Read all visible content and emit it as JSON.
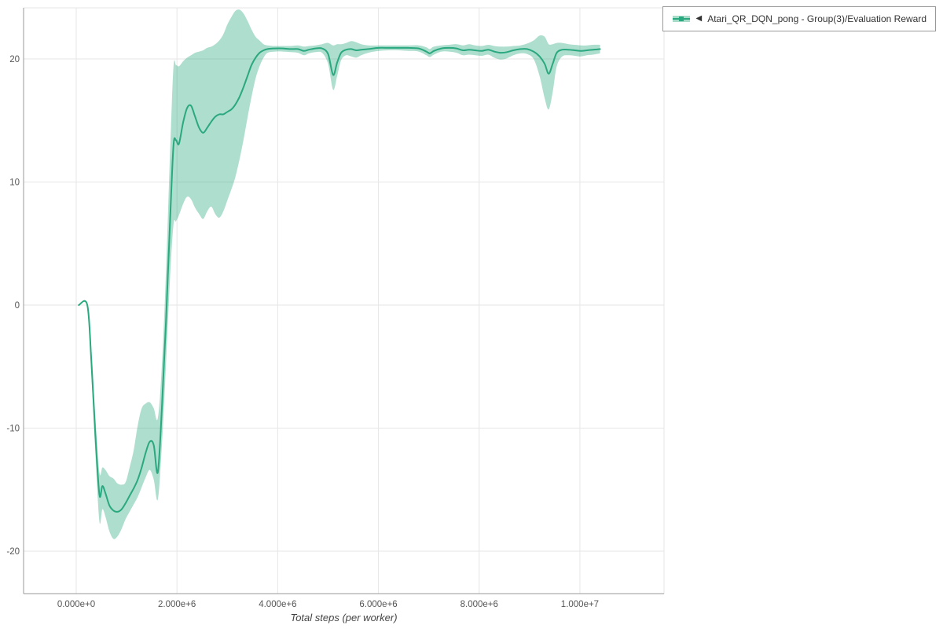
{
  "page": {
    "background": "#ffffff"
  },
  "legend": {
    "items": [
      {
        "collapse_icon": "◀",
        "label": "Atari_QR_DQN_pong - Group(3)/Evaluation Reward",
        "marker_color": "#2aa87f",
        "band_color": "#a9dcc8"
      }
    ]
  },
  "style": {
    "grid_color": "#e6e6e6",
    "axis_color": "#999999",
    "tick_label_color": "#555555",
    "axis_title_color": "#444444",
    "legend_border_color": "#999999",
    "legend_text_color": "#333333"
  },
  "chart_data": {
    "type": "line",
    "title": "",
    "xlabel": "Total steps (per worker)",
    "ylabel": "",
    "xlim": [
      -1045000,
      11670000
    ],
    "ylim": [
      -23.45,
      24.15
    ],
    "grid": true,
    "legend_position": "top-right",
    "x_ticks": [
      {
        "value": 0,
        "label": "0.000e+0"
      },
      {
        "value": 2000000,
        "label": "2.000e+6"
      },
      {
        "value": 4000000,
        "label": "4.000e+6"
      },
      {
        "value": 6000000,
        "label": "6.000e+6"
      },
      {
        "value": 8000000,
        "label": "8.000e+6"
      },
      {
        "value": 10000000,
        "label": "1.000e+7"
      }
    ],
    "y_ticks": [
      {
        "value": -20,
        "label": "-20"
      },
      {
        "value": -10,
        "label": "-10"
      },
      {
        "value": 0,
        "label": "0"
      },
      {
        "value": 10,
        "label": "10"
      },
      {
        "value": 20,
        "label": "20"
      }
    ],
    "series": [
      {
        "name": "Atari_QR_DQN_pong - Group(3)/Evaluation Reward",
        "line_color": "#2aa87f",
        "band_opacity": 0.38,
        "points_format": [
          "x_steps",
          "lower",
          "mean",
          "upper"
        ],
        "points": [
          [
            50000,
            0,
            0,
            0
          ],
          [
            220000,
            0,
            0,
            0
          ],
          [
            300000,
            -5.5,
            -4.5,
            -3.5
          ],
          [
            380000,
            -12,
            -10.5,
            -9
          ],
          [
            460000,
            -17.6,
            -15.4,
            -13.6
          ],
          [
            520000,
            -16.6,
            -14.7,
            -13.2
          ],
          [
            580000,
            -17.2,
            -15.3,
            -13.4
          ],
          [
            660000,
            -18.4,
            -16.3,
            -13.9
          ],
          [
            740000,
            -19,
            -16.7,
            -14.1
          ],
          [
            820000,
            -18.8,
            -16.8,
            -14.5
          ],
          [
            900000,
            -18.2,
            -16.6,
            -14.6
          ],
          [
            980000,
            -17.4,
            -16.1,
            -14.4
          ],
          [
            1060000,
            -16.8,
            -15.5,
            -13.2
          ],
          [
            1140000,
            -16.2,
            -14.9,
            -11.8
          ],
          [
            1220000,
            -15.6,
            -14.2,
            -9.8
          ],
          [
            1300000,
            -14.8,
            -13.2,
            -8.4
          ],
          [
            1380000,
            -14,
            -12,
            -8
          ],
          [
            1460000,
            -13.4,
            -11.1,
            -7.9
          ],
          [
            1540000,
            -14.2,
            -11.4,
            -8.4
          ],
          [
            1620000,
            -15.8,
            -13.6,
            -9.2
          ],
          [
            1700000,
            -11.5,
            -8.5,
            -5
          ],
          [
            1780000,
            -5,
            -1.5,
            2.5
          ],
          [
            1860000,
            2,
            6.5,
            12
          ],
          [
            1930000,
            6.5,
            12.9,
            19.3
          ],
          [
            1980000,
            6.8,
            13.4,
            19.5
          ],
          [
            2040000,
            7.3,
            13.1,
            19.4
          ],
          [
            2120000,
            8.2,
            14.8,
            19.8
          ],
          [
            2200000,
            8.8,
            16,
            20.1
          ],
          [
            2280000,
            8.6,
            16.2,
            20.3
          ],
          [
            2360000,
            7.9,
            15.3,
            20.5
          ],
          [
            2440000,
            7.4,
            14.4,
            20.6
          ],
          [
            2520000,
            7,
            14,
            20.7
          ],
          [
            2600000,
            7.6,
            14.4,
            20.9
          ],
          [
            2680000,
            8,
            14.9,
            21
          ],
          [
            2760000,
            7.4,
            15.3,
            21.2
          ],
          [
            2840000,
            7.1,
            15.5,
            21.5
          ],
          [
            2920000,
            7.6,
            15.5,
            22
          ],
          [
            3000000,
            8.5,
            15.7,
            22.8
          ],
          [
            3080000,
            9.4,
            15.9,
            23.4
          ],
          [
            3160000,
            10.4,
            16.3,
            23.9
          ],
          [
            3240000,
            11.8,
            16.9,
            24
          ],
          [
            3320000,
            13.4,
            17.7,
            23.7
          ],
          [
            3400000,
            15.2,
            18.6,
            23.1
          ],
          [
            3480000,
            16.9,
            19.5,
            22.4
          ],
          [
            3560000,
            18.4,
            20.1,
            21.8
          ],
          [
            3640000,
            19.4,
            20.5,
            21.5
          ],
          [
            3720000,
            20.1,
            20.7,
            21.2
          ],
          [
            3800000,
            20.5,
            20.8,
            21.1
          ],
          [
            3950000,
            20.6,
            20.85,
            21.05
          ],
          [
            4100000,
            20.6,
            20.85,
            21.05
          ],
          [
            4250000,
            20.55,
            20.8,
            21.05
          ],
          [
            4400000,
            20.5,
            20.8,
            21.1
          ],
          [
            4520000,
            20.3,
            20.65,
            21
          ],
          [
            4620000,
            20.45,
            20.75,
            21.05
          ],
          [
            4750000,
            20.55,
            20.85,
            21.1
          ],
          [
            4880000,
            20.5,
            20.85,
            21.2
          ],
          [
            5000000,
            19.6,
            20.4,
            21.3
          ],
          [
            5100000,
            17.5,
            18.7,
            21.1
          ],
          [
            5180000,
            18.6,
            19.7,
            21.2
          ],
          [
            5260000,
            19.9,
            20.5,
            21.2
          ],
          [
            5360000,
            20.3,
            20.75,
            21.3
          ],
          [
            5460000,
            20.2,
            20.8,
            21.45
          ],
          [
            5560000,
            20.1,
            20.7,
            21.35
          ],
          [
            5660000,
            20.3,
            20.75,
            21.2
          ],
          [
            5800000,
            20.5,
            20.8,
            21.1
          ],
          [
            6000000,
            20.65,
            20.9,
            21.1
          ],
          [
            6200000,
            20.7,
            20.9,
            21.1
          ],
          [
            6400000,
            20.7,
            20.9,
            21.1
          ],
          [
            6600000,
            20.65,
            20.9,
            21.1
          ],
          [
            6800000,
            20.6,
            20.85,
            21.1
          ],
          [
            6950000,
            20.3,
            20.6,
            20.95
          ],
          [
            7020000,
            20.15,
            20.45,
            20.8
          ],
          [
            7100000,
            20.35,
            20.65,
            21
          ],
          [
            7250000,
            20.6,
            20.85,
            21.1
          ],
          [
            7400000,
            20.6,
            20.9,
            21.15
          ],
          [
            7550000,
            20.5,
            20.85,
            21.2
          ],
          [
            7680000,
            20.3,
            20.7,
            21.1
          ],
          [
            7800000,
            20.35,
            20.75,
            21.2
          ],
          [
            7920000,
            20.3,
            20.7,
            21.1
          ],
          [
            8050000,
            20.25,
            20.65,
            21.05
          ],
          [
            8180000,
            20.35,
            20.75,
            21.15
          ],
          [
            8300000,
            20.1,
            20.6,
            21.05
          ],
          [
            8420000,
            19.95,
            20.5,
            21
          ],
          [
            8550000,
            20.05,
            20.55,
            21
          ],
          [
            8680000,
            20.3,
            20.7,
            21.05
          ],
          [
            8820000,
            20.45,
            20.8,
            21.1
          ],
          [
            8950000,
            20.4,
            20.8,
            21.25
          ],
          [
            9080000,
            20,
            20.6,
            21.5
          ],
          [
            9200000,
            18.6,
            20.2,
            21.9
          ],
          [
            9300000,
            16.8,
            19.6,
            21.8
          ],
          [
            9380000,
            15.9,
            18.8,
            21.2
          ],
          [
            9460000,
            17.3,
            19.6,
            21.2
          ],
          [
            9540000,
            19.4,
            20.5,
            21.3
          ],
          [
            9650000,
            20.2,
            20.75,
            21.3
          ],
          [
            9780000,
            20.3,
            20.75,
            21.2
          ],
          [
            9900000,
            20.25,
            20.7,
            21.15
          ],
          [
            10020000,
            20.2,
            20.65,
            21.1
          ],
          [
            10140000,
            20.3,
            20.7,
            21.1
          ],
          [
            10260000,
            20.35,
            20.75,
            21.15
          ],
          [
            10400000,
            20.45,
            20.8,
            21.15
          ]
        ]
      }
    ]
  }
}
